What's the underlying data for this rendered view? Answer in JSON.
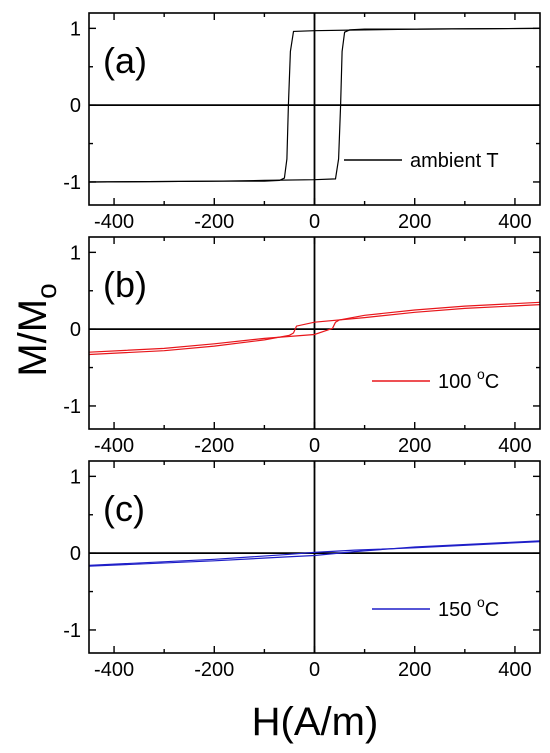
{
  "chart_data": [
    {
      "type": "line",
      "panel_label": "(a)",
      "xlabel": "H(A/m)",
      "ylabel": "M/M",
      "ylabel_subscript": "o",
      "xlim": [
        -450,
        450
      ],
      "ylim": [
        -1.3,
        1.2
      ],
      "xticks": [
        -400,
        -200,
        0,
        200,
        400
      ],
      "yticks": [
        -1,
        0,
        1
      ],
      "xtick_labels": [
        "-400",
        "-200",
        "0",
        "200",
        "400"
      ],
      "ytick_labels": [
        "-1",
        "0",
        "1"
      ],
      "legend_position": "bottom-right",
      "series": [
        {
          "name": "ambient T",
          "color": "#000000",
          "upper_branch": {
            "x": [
              -450,
              -200,
              -100,
              -70,
              -60,
              -55,
              -52,
              -48,
              -42,
              0,
              100,
              200,
              450
            ],
            "y": [
              -1.0,
              -0.99,
              -0.99,
              -0.98,
              -0.95,
              -0.7,
              0.0,
              0.7,
              0.96,
              0.97,
              0.98,
              0.99,
              1.0
            ]
          },
          "lower_branch": {
            "x": [
              450,
              200,
              100,
              70,
              60,
              55,
              52,
              48,
              42,
              0,
              -100,
              -200,
              -450
            ],
            "y": [
              1.0,
              0.99,
              0.99,
              0.98,
              0.95,
              0.7,
              0.0,
              -0.7,
              -0.96,
              -0.97,
              -0.98,
              -0.99,
              -1.0
            ]
          }
        }
      ]
    },
    {
      "type": "line",
      "panel_label": "(b)",
      "xlim": [
        -450,
        450
      ],
      "ylim": [
        -1.3,
        1.2
      ],
      "xticks": [
        -400,
        -200,
        0,
        200,
        400
      ],
      "yticks": [
        -1,
        0,
        1
      ],
      "xtick_labels": [
        "-400",
        "-200",
        "0",
        "200",
        "400"
      ],
      "ytick_labels": [
        "-1",
        "0",
        "1"
      ],
      "legend_position": "bottom-right",
      "series": [
        {
          "name": "100 °C",
          "name_base": "100 ",
          "name_sup": "o",
          "name_after": "C",
          "color": "#e8161b",
          "upper_branch": {
            "x": [
              -450,
              -300,
              -200,
              -100,
              -50,
              -42,
              -36,
              0,
              100,
              200,
              300,
              450
            ],
            "y": [
              -0.33,
              -0.28,
              -0.22,
              -0.14,
              -0.08,
              -0.05,
              0.04,
              0.09,
              0.15,
              0.22,
              0.27,
              0.32
            ]
          },
          "lower_branch": {
            "x": [
              450,
              300,
              200,
              100,
              50,
              42,
              36,
              0,
              -100,
              -200,
              -300,
              -450
            ],
            "y": [
              0.35,
              0.3,
              0.25,
              0.18,
              0.12,
              0.09,
              0.01,
              -0.07,
              -0.12,
              -0.19,
              -0.25,
              -0.3
            ]
          }
        }
      ]
    },
    {
      "type": "line",
      "panel_label": "(c)",
      "xlim": [
        -450,
        450
      ],
      "ylim": [
        -1.3,
        1.2
      ],
      "xticks": [
        -400,
        -200,
        0,
        200,
        400
      ],
      "yticks": [
        -1,
        0,
        1
      ],
      "xtick_labels": [
        "-400",
        "-200",
        "0",
        "200",
        "400"
      ],
      "ytick_labels": [
        "-1",
        "0",
        "1"
      ],
      "legend_position": "bottom-right",
      "series": [
        {
          "name": "150 °C",
          "name_base": "150 ",
          "name_sup": "o",
          "name_after": "C",
          "color": "#1f1fc8",
          "upper_branch": {
            "x": [
              -450,
              -200,
              -60,
              0,
              80,
              200,
              450
            ],
            "y": [
              -0.16,
              -0.08,
              -0.02,
              0.01,
              0.04,
              0.07,
              0.15
            ]
          },
          "lower_branch": {
            "x": [
              450,
              200,
              80,
              0,
              -60,
              -200,
              -450
            ],
            "y": [
              0.16,
              0.08,
              0.02,
              -0.03,
              -0.05,
              -0.1,
              -0.17
            ]
          }
        }
      ]
    }
  ]
}
